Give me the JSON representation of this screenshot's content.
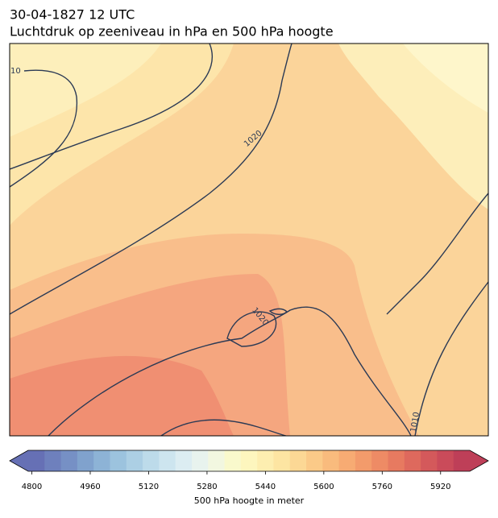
{
  "chart_data": {
    "type": "map",
    "title": "30-04-1827 12 UTC",
    "subtitle": "Luchtdruk op zeeniveau in hPa en 500 hPa hoogte",
    "contour_labels": [
      "10",
      "1020",
      "1020",
      "1010"
    ],
    "colorbar": {
      "label": "500 hPa hoogte in meter",
      "lim": [
        4790,
        6000
      ],
      "ticks": [
        4800,
        4960,
        5120,
        5280,
        5440,
        5600,
        5760,
        5920
      ],
      "colors": [
        "#6670b5",
        "#6e80bd",
        "#7690c5",
        "#80a2cd",
        "#8db3d6",
        "#9cc3de",
        "#accfe4",
        "#bddbea",
        "#cde5ef",
        "#dcedf2",
        "#e8f3ee",
        "#f2f7e0",
        "#f9f9cc",
        "#fdf6be",
        "#fdeeb0",
        "#fde5a2",
        "#fcd895",
        "#fbca88",
        "#f9bb7d",
        "#f7ab73",
        "#f39b6b",
        "#ee8b65",
        "#e77a60",
        "#de695d",
        "#d4595b",
        "#ca4b5a",
        "#be3f58"
      ]
    }
  }
}
